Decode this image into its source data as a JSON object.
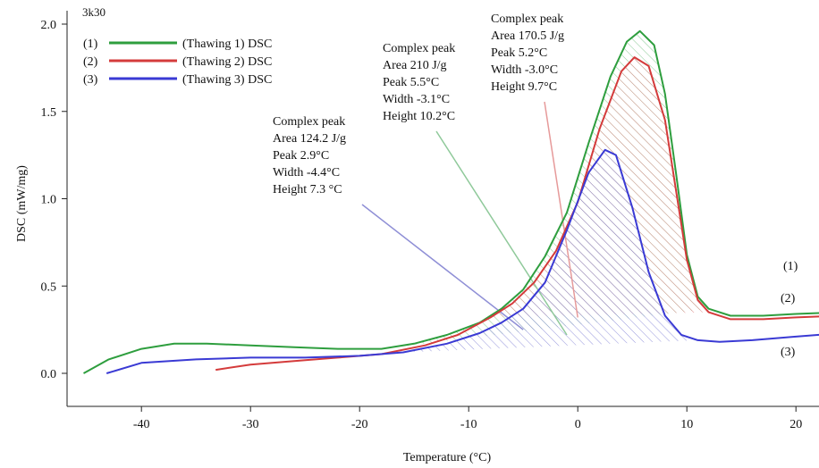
{
  "corner_label": "3k30",
  "chart_data": {
    "type": "line",
    "title": "",
    "xlabel": "Temperature (°C)",
    "ylabel": "DSC (mW/mg)",
    "xlim": [
      -46,
      24
    ],
    "ylim": [
      -0.2,
      2.0
    ],
    "x_ticks": [
      -40,
      -30,
      -20,
      -10,
      0,
      10,
      20
    ],
    "y_ticks": [
      0.0,
      0.5,
      1.0,
      1.5,
      2.0
    ],
    "x_tick_labels": [
      "-40",
      "-30",
      "-20",
      "-10",
      "0",
      "10",
      "20"
    ],
    "y_tick_labels": [
      "0.0",
      "0.5",
      "1.0",
      "1.5",
      "2.0"
    ],
    "grid": false,
    "legend_position": "top-left",
    "series": [
      {
        "name": "(Thawing 1) DSC",
        "legend_number": "(1)",
        "color": "#2e9e3e",
        "x": [
          -45.3,
          -43,
          -40,
          -37,
          -34,
          -30,
          -26,
          -22,
          -18,
          -15,
          -12,
          -9,
          -7,
          -5,
          -3,
          -1,
          1,
          3,
          4.5,
          5.7,
          7,
          8,
          9,
          10,
          11,
          12,
          14,
          17,
          20,
          24
        ],
        "y": [
          0.0,
          0.08,
          0.14,
          0.17,
          0.17,
          0.16,
          0.15,
          0.14,
          0.14,
          0.17,
          0.22,
          0.29,
          0.37,
          0.48,
          0.67,
          0.92,
          1.32,
          1.7,
          1.9,
          1.96,
          1.88,
          1.6,
          1.15,
          0.68,
          0.44,
          0.37,
          0.33,
          0.33,
          0.34,
          0.35
        ]
      },
      {
        "name": "(Thawing 2) DSC",
        "legend_number": "(2)",
        "color": "#d43b3b",
        "x": [
          -33.2,
          -30,
          -26,
          -22,
          -18,
          -14,
          -11,
          -8,
          -6,
          -4,
          -2,
          0,
          2,
          4,
          5.2,
          6.5,
          8,
          9,
          10,
          11,
          12,
          14,
          17,
          20,
          24
        ],
        "y": [
          0.02,
          0.05,
          0.07,
          0.09,
          0.11,
          0.16,
          0.22,
          0.32,
          0.4,
          0.52,
          0.7,
          0.98,
          1.4,
          1.73,
          1.81,
          1.76,
          1.45,
          1.05,
          0.65,
          0.42,
          0.35,
          0.31,
          0.31,
          0.32,
          0.33
        ]
      },
      {
        "name": "(Thawing 3) DSC",
        "legend_number": "(3)",
        "color": "#3a3ad4",
        "x": [
          -43.2,
          -40,
          -35,
          -30,
          -25,
          -20,
          -16,
          -12,
          -9,
          -7,
          -5,
          -3,
          -1,
          1,
          2.5,
          3.5,
          5,
          6.5,
          8,
          9.5,
          11,
          13,
          16,
          20,
          24
        ],
        "y": [
          0.0,
          0.06,
          0.08,
          0.09,
          0.09,
          0.1,
          0.12,
          0.17,
          0.23,
          0.29,
          0.37,
          0.52,
          0.82,
          1.15,
          1.28,
          1.25,
          0.95,
          0.58,
          0.33,
          0.22,
          0.19,
          0.18,
          0.19,
          0.21,
          0.23
        ]
      }
    ],
    "annotations": [
      {
        "lines": [
          "Complex peak",
          "Area 124.2 J/g",
          "Peak 2.9°C",
          "Width -4.4°C",
          "Height 7.3 °C"
        ],
        "series_index": 2,
        "leader_color": "#8f8fd6"
      },
      {
        "lines": [
          "Complex peak",
          "Area 210 J/g",
          "Peak 5.5°C",
          "Width -3.1°C",
          "Height 10.2°C"
        ],
        "series_index": 0,
        "leader_color": "#8fc99a"
      },
      {
        "lines": [
          "Complex peak",
          "Area 170.5 J/g",
          "Peak 5.2°C",
          "Width -3.0°C",
          "Height 9.7°C"
        ],
        "series_index": 1,
        "leader_color": "#e69a9a"
      }
    ],
    "curve_end_labels": [
      "(1)",
      "(2)",
      "(3)"
    ]
  }
}
